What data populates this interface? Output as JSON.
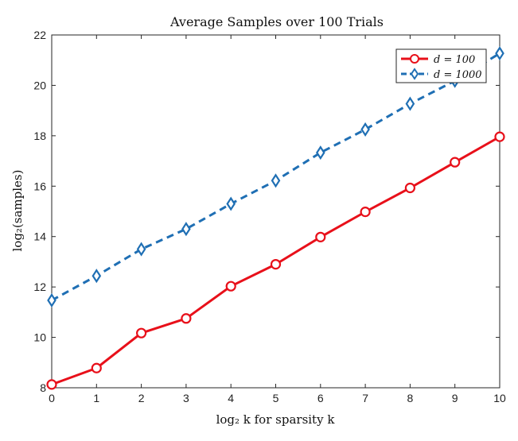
{
  "chart_data": {
    "type": "line",
    "title": "Average Samples over 100 Trials",
    "xlabel": "log₂ k for sparsity k",
    "ylabel": "log₂(samples)",
    "x": [
      0,
      1,
      2,
      3,
      4,
      5,
      6,
      7,
      8,
      9,
      10
    ],
    "xlim": [
      0,
      10
    ],
    "ylim": [
      8,
      22
    ],
    "xticks": [
      0,
      1,
      2,
      3,
      4,
      5,
      6,
      7,
      8,
      9,
      10
    ],
    "yticks": [
      8,
      10,
      12,
      14,
      16,
      18,
      20,
      22
    ],
    "grid": false,
    "legend_position": "top-right",
    "series": [
      {
        "name": "d = 100",
        "color": "#e8101a",
        "line_style": "solid",
        "marker": "circle",
        "values": [
          8.13,
          8.78,
          10.17,
          10.75,
          12.03,
          12.9,
          13.98,
          14.98,
          15.93,
          16.95,
          17.96
        ]
      },
      {
        "name": "d = 1000",
        "color": "#1f6fb4",
        "line_style": "dashed",
        "marker": "diamond",
        "values": [
          11.47,
          12.44,
          13.5,
          14.3,
          15.3,
          16.22,
          17.33,
          18.25,
          19.27,
          20.18,
          21.27
        ]
      }
    ]
  }
}
